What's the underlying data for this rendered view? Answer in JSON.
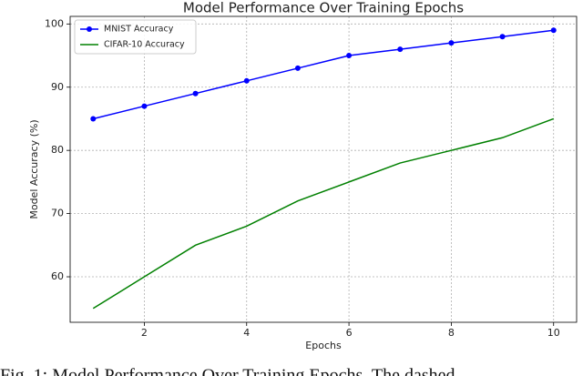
{
  "chart_data": {
    "type": "line",
    "title": "Model Performance Over Training Epochs",
    "x_label": "Epochs",
    "y_label": "Model Accuracy (%)",
    "x": [
      1,
      2,
      3,
      4,
      5,
      6,
      7,
      8,
      9,
      10
    ],
    "series": [
      {
        "name": "MNIST Accuracy",
        "color": "#0000ff",
        "marker": "o",
        "values": [
          85,
          87,
          89,
          91,
          93,
          95,
          96,
          97,
          98,
          99
        ]
      },
      {
        "name": "CIFAR-10 Accuracy",
        "color": "#008000",
        "values": [
          55,
          60,
          65,
          68,
          72,
          75,
          78,
          80,
          82,
          85
        ]
      }
    ],
    "xlim": [
      0.55,
      10.45
    ],
    "ylim": [
      52.8,
      101.2
    ],
    "xticks": [
      2,
      4,
      6,
      8,
      10
    ],
    "yticks": [
      60,
      70,
      80,
      90,
      100
    ],
    "grid": true,
    "legend": "upper left"
  },
  "caption": "Fig. 1: Model Performance Over Training Epochs. The dashed"
}
